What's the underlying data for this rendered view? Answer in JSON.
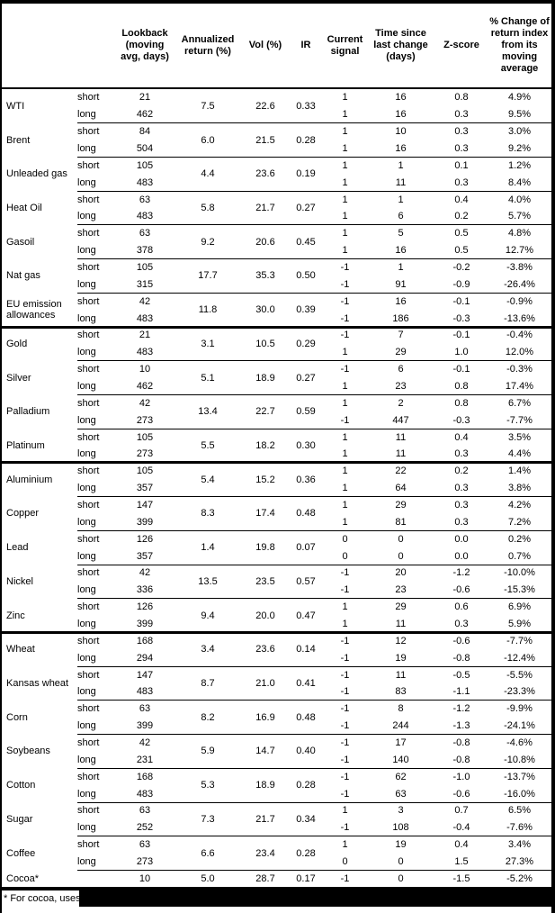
{
  "colors": {
    "background": "#ffffff",
    "text": "#000000",
    "border": "#000000",
    "redaction": "#000000"
  },
  "table": {
    "columns": [
      {
        "label": ""
      },
      {
        "label": ""
      },
      {
        "label": "Lookback (moving avg, days)"
      },
      {
        "label": "Annualized return (%)"
      },
      {
        "label": "Vol (%)"
      },
      {
        "label": "IR"
      },
      {
        "label": "Current signal"
      },
      {
        "label": "Time since last change (days)"
      },
      {
        "label": "Z-score"
      },
      {
        "label": "% Change of return index from its moving average"
      }
    ],
    "groups": [
      {
        "name": "WTI",
        "sep": "none",
        "annret": "7.5",
        "vol": "22.6",
        "ir": "0.33",
        "rows": [
          {
            "horizon": "short",
            "lookback": "21",
            "signal": "1",
            "time": "16",
            "zscore": "0.8",
            "pct": "4.9%"
          },
          {
            "horizon": "long",
            "lookback": "462",
            "signal": "1",
            "time": "16",
            "zscore": "0.3",
            "pct": "9.5%"
          }
        ]
      },
      {
        "name": "Brent",
        "sep": "thin",
        "annret": "6.0",
        "vol": "21.5",
        "ir": "0.28",
        "rows": [
          {
            "horizon": "short",
            "lookback": "84",
            "signal": "1",
            "time": "10",
            "zscore": "0.3",
            "pct": "3.0%"
          },
          {
            "horizon": "long",
            "lookback": "504",
            "signal": "1",
            "time": "16",
            "zscore": "0.3",
            "pct": "9.2%"
          }
        ]
      },
      {
        "name": "Unleaded gas",
        "sep": "thin",
        "annret": "4.4",
        "vol": "23.6",
        "ir": "0.19",
        "rows": [
          {
            "horizon": "short",
            "lookback": "105",
            "signal": "1",
            "time": "1",
            "zscore": "0.1",
            "pct": "1.2%"
          },
          {
            "horizon": "long",
            "lookback": "483",
            "signal": "1",
            "time": "11",
            "zscore": "0.3",
            "pct": "8.4%"
          }
        ]
      },
      {
        "name": "Heat Oil",
        "sep": "thin",
        "annret": "5.8",
        "vol": "21.7",
        "ir": "0.27",
        "rows": [
          {
            "horizon": "short",
            "lookback": "63",
            "signal": "1",
            "time": "1",
            "zscore": "0.4",
            "pct": "4.0%"
          },
          {
            "horizon": "long",
            "lookback": "483",
            "signal": "1",
            "time": "6",
            "zscore": "0.2",
            "pct": "5.7%"
          }
        ]
      },
      {
        "name": "Gasoil",
        "sep": "thin",
        "annret": "9.2",
        "vol": "20.6",
        "ir": "0.45",
        "rows": [
          {
            "horizon": "short",
            "lookback": "63",
            "signal": "1",
            "time": "5",
            "zscore": "0.5",
            "pct": "4.8%"
          },
          {
            "horizon": "long",
            "lookback": "378",
            "signal": "1",
            "time": "16",
            "zscore": "0.5",
            "pct": "12.7%"
          }
        ]
      },
      {
        "name": "Nat gas",
        "sep": "thin",
        "annret": "17.7",
        "vol": "35.3",
        "ir": "0.50",
        "rows": [
          {
            "horizon": "short",
            "lookback": "105",
            "signal": "-1",
            "time": "1",
            "zscore": "-0.2",
            "pct": "-3.8%"
          },
          {
            "horizon": "long",
            "lookback": "315",
            "signal": "-1",
            "time": "91",
            "zscore": "-0.9",
            "pct": "-26.4%"
          }
        ]
      },
      {
        "name": "EU emission allowances",
        "sep": "thin",
        "annret": "11.8",
        "vol": "30.0",
        "ir": "0.39",
        "rows": [
          {
            "horizon": "short",
            "lookback": "42",
            "signal": "-1",
            "time": "16",
            "zscore": "-0.1",
            "pct": "-0.9%"
          },
          {
            "horizon": "long",
            "lookback": "483",
            "signal": "-1",
            "time": "186",
            "zscore": "-0.3",
            "pct": "-13.6%"
          }
        ]
      },
      {
        "name": "Gold",
        "sep": "thick",
        "annret": "3.1",
        "vol": "10.5",
        "ir": "0.29",
        "rows": [
          {
            "horizon": "short",
            "lookback": "21",
            "signal": "-1",
            "time": "7",
            "zscore": "-0.1",
            "pct": "-0.4%"
          },
          {
            "horizon": "long",
            "lookback": "483",
            "signal": "1",
            "time": "29",
            "zscore": "1.0",
            "pct": "12.0%"
          }
        ]
      },
      {
        "name": "Silver",
        "sep": "thin",
        "annret": "5.1",
        "vol": "18.9",
        "ir": "0.27",
        "rows": [
          {
            "horizon": "short",
            "lookback": "10",
            "signal": "-1",
            "time": "6",
            "zscore": "-0.1",
            "pct": "-0.3%"
          },
          {
            "horizon": "long",
            "lookback": "462",
            "signal": "1",
            "time": "23",
            "zscore": "0.8",
            "pct": "17.4%"
          }
        ]
      },
      {
        "name": "Palladium",
        "sep": "thin",
        "annret": "13.4",
        "vol": "22.7",
        "ir": "0.59",
        "rows": [
          {
            "horizon": "short",
            "lookback": "42",
            "signal": "1",
            "time": "2",
            "zscore": "0.8",
            "pct": "6.7%"
          },
          {
            "horizon": "long",
            "lookback": "273",
            "signal": "-1",
            "time": "447",
            "zscore": "-0.3",
            "pct": "-7.7%"
          }
        ]
      },
      {
        "name": "Platinum",
        "sep": "thin",
        "annret": "5.5",
        "vol": "18.2",
        "ir": "0.30",
        "rows": [
          {
            "horizon": "short",
            "lookback": "105",
            "signal": "1",
            "time": "11",
            "zscore": "0.4",
            "pct": "3.5%"
          },
          {
            "horizon": "long",
            "lookback": "273",
            "signal": "1",
            "time": "11",
            "zscore": "0.3",
            "pct": "4.4%"
          }
        ]
      },
      {
        "name": "Aluminium",
        "sep": "thick",
        "annret": "5.4",
        "vol": "15.2",
        "ir": "0.36",
        "rows": [
          {
            "horizon": "short",
            "lookback": "105",
            "signal": "1",
            "time": "22",
            "zscore": "0.2",
            "pct": "1.4%"
          },
          {
            "horizon": "long",
            "lookback": "357",
            "signal": "1",
            "time": "64",
            "zscore": "0.3",
            "pct": "3.8%"
          }
        ]
      },
      {
        "name": "Copper",
        "sep": "thin",
        "annret": "8.3",
        "vol": "17.4",
        "ir": "0.48",
        "rows": [
          {
            "horizon": "short",
            "lookback": "147",
            "signal": "1",
            "time": "29",
            "zscore": "0.3",
            "pct": "4.2%"
          },
          {
            "horizon": "long",
            "lookback": "399",
            "signal": "1",
            "time": "81",
            "zscore": "0.3",
            "pct": "7.2%"
          }
        ]
      },
      {
        "name": "Lead",
        "sep": "thin",
        "annret": "1.4",
        "vol": "19.8",
        "ir": "0.07",
        "rows": [
          {
            "horizon": "short",
            "lookback": "126",
            "signal": "0",
            "time": "0",
            "zscore": "0.0",
            "pct": "0.2%"
          },
          {
            "horizon": "long",
            "lookback": "357",
            "signal": "0",
            "time": "0",
            "zscore": "0.0",
            "pct": "0.7%"
          }
        ]
      },
      {
        "name": "Nickel",
        "sep": "thin",
        "annret": "13.5",
        "vol": "23.5",
        "ir": "0.57",
        "rows": [
          {
            "horizon": "short",
            "lookback": "42",
            "signal": "-1",
            "time": "20",
            "zscore": "-1.2",
            "pct": "-10.0%"
          },
          {
            "horizon": "long",
            "lookback": "336",
            "signal": "-1",
            "time": "23",
            "zscore": "-0.6",
            "pct": "-15.3%"
          }
        ]
      },
      {
        "name": "Zinc",
        "sep": "thin",
        "annret": "9.4",
        "vol": "20.0",
        "ir": "0.47",
        "rows": [
          {
            "horizon": "short",
            "lookback": "126",
            "signal": "1",
            "time": "29",
            "zscore": "0.6",
            "pct": "6.9%"
          },
          {
            "horizon": "long",
            "lookback": "399",
            "signal": "1",
            "time": "11",
            "zscore": "0.3",
            "pct": "5.9%"
          }
        ]
      },
      {
        "name": "Wheat",
        "sep": "thick",
        "annret": "3.4",
        "vol": "23.6",
        "ir": "0.14",
        "rows": [
          {
            "horizon": "short",
            "lookback": "168",
            "signal": "-1",
            "time": "12",
            "zscore": "-0.6",
            "pct": "-7.7%"
          },
          {
            "horizon": "long",
            "lookback": "294",
            "signal": "-1",
            "time": "19",
            "zscore": "-0.8",
            "pct": "-12.4%"
          }
        ]
      },
      {
        "name": "Kansas wheat",
        "sep": "thin",
        "annret": "8.7",
        "vol": "21.0",
        "ir": "0.41",
        "rows": [
          {
            "horizon": "short",
            "lookback": "147",
            "signal": "-1",
            "time": "11",
            "zscore": "-0.5",
            "pct": "-5.5%"
          },
          {
            "horizon": "long",
            "lookback": "483",
            "signal": "-1",
            "time": "83",
            "zscore": "-1.1",
            "pct": "-23.3%"
          }
        ]
      },
      {
        "name": "Corn",
        "sep": "thin",
        "annret": "8.2",
        "vol": "16.9",
        "ir": "0.48",
        "rows": [
          {
            "horizon": "short",
            "lookback": "63",
            "signal": "-1",
            "time": "8",
            "zscore": "-1.2",
            "pct": "-9.9%"
          },
          {
            "horizon": "long",
            "lookback": "399",
            "signal": "-1",
            "time": "244",
            "zscore": "-1.3",
            "pct": "-24.1%"
          }
        ]
      },
      {
        "name": "Soybeans",
        "sep": "thin",
        "annret": "5.9",
        "vol": "14.7",
        "ir": "0.40",
        "rows": [
          {
            "horizon": "short",
            "lookback": "42",
            "signal": "-1",
            "time": "17",
            "zscore": "-0.8",
            "pct": "-4.6%"
          },
          {
            "horizon": "long",
            "lookback": "231",
            "signal": "-1",
            "time": "140",
            "zscore": "-0.8",
            "pct": "-10.8%"
          }
        ]
      },
      {
        "name": "Cotton",
        "sep": "thin",
        "annret": "5.3",
        "vol": "18.9",
        "ir": "0.28",
        "rows": [
          {
            "horizon": "short",
            "lookback": "168",
            "signal": "-1",
            "time": "62",
            "zscore": "-1.0",
            "pct": "-13.7%"
          },
          {
            "horizon": "long",
            "lookback": "483",
            "signal": "-1",
            "time": "63",
            "zscore": "-0.6",
            "pct": "-16.0%"
          }
        ]
      },
      {
        "name": "Sugar",
        "sep": "thin",
        "annret": "7.3",
        "vol": "21.7",
        "ir": "0.34",
        "rows": [
          {
            "horizon": "short",
            "lookback": "63",
            "signal": "1",
            "time": "3",
            "zscore": "0.7",
            "pct": "6.5%"
          },
          {
            "horizon": "long",
            "lookback": "252",
            "signal": "-1",
            "time": "108",
            "zscore": "-0.4",
            "pct": "-7.6%"
          }
        ]
      },
      {
        "name": "Coffee",
        "sep": "thin",
        "annret": "6.6",
        "vol": "23.4",
        "ir": "0.28",
        "rows": [
          {
            "horizon": "short",
            "lookback": "63",
            "signal": "1",
            "time": "19",
            "zscore": "0.4",
            "pct": "3.4%"
          },
          {
            "horizon": "long",
            "lookback": "273",
            "signal": "0",
            "time": "0",
            "zscore": "1.5",
            "pct": "27.3%"
          }
        ]
      },
      {
        "name": "Cocoa*",
        "sep": "thin",
        "annret": "5.0",
        "vol": "28.7",
        "ir": "0.17",
        "rows": [
          {
            "horizon": "",
            "lookback": "10",
            "signal": "-1",
            "time": "0",
            "zscore": "-1.5",
            "pct": "-5.2%"
          }
        ]
      }
    ],
    "footnote_visible": "* For cocoa, uses c"
  }
}
